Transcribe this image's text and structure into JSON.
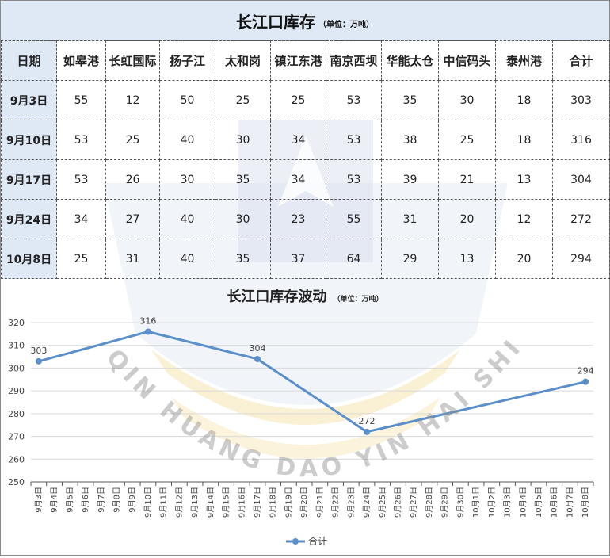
{
  "table": {
    "title": "长江口库存",
    "unit": "（单位：万吨）",
    "headers": [
      "日期",
      "如皋港",
      "长虹国际",
      "扬子江",
      "太和岗",
      "镇江东港",
      "南京西坝",
      "华能太仓",
      "中信码头",
      "泰州港",
      "合计"
    ],
    "rows": [
      [
        "9月3日",
        "55",
        "12",
        "50",
        "25",
        "25",
        "53",
        "35",
        "30",
        "18",
        "303"
      ],
      [
        "9月10日",
        "53",
        "25",
        "40",
        "30",
        "34",
        "53",
        "38",
        "25",
        "18",
        "316"
      ],
      [
        "9月17日",
        "53",
        "26",
        "30",
        "35",
        "34",
        "53",
        "39",
        "21",
        "13",
        "304"
      ],
      [
        "9月24日",
        "34",
        "27",
        "40",
        "30",
        "23",
        "55",
        "31",
        "20",
        "12",
        "272"
      ],
      [
        "10月8日",
        "25",
        "31",
        "40",
        "35",
        "37",
        "64",
        "29",
        "13",
        "20",
        "294"
      ]
    ]
  },
  "watermark_text": "QIN HUANG DAO YIN HAI SHIPPING",
  "chart_data": {
    "type": "line",
    "title": "长江口库存波动",
    "unit": "（单位：万吨）",
    "categories": [
      "9月3日",
      "9月4日",
      "9月5日",
      "9月6日",
      "9月7日",
      "9月8日",
      "9月9日",
      "9月10日",
      "9月11日",
      "9月12日",
      "9月13日",
      "9月14日",
      "9月15日",
      "9月16日",
      "9月17日",
      "9月18日",
      "9月19日",
      "9月20日",
      "9月21日",
      "9月22日",
      "9月23日",
      "9月24日",
      "9月25日",
      "9月26日",
      "9月27日",
      "9月28日",
      "9月29日",
      "9月30日",
      "10月1日",
      "10月2日",
      "10月3日",
      "10月4日",
      "10月5日",
      "10月6日",
      "10月7日",
      "10月8日"
    ],
    "series": [
      {
        "name": "合计",
        "points": [
          [
            "9月3日",
            303
          ],
          [
            "9月10日",
            316
          ],
          [
            "9月17日",
            304
          ],
          [
            "9月24日",
            272
          ],
          [
            "10月8日",
            294
          ]
        ]
      }
    ],
    "yticks": [
      250,
      260,
      270,
      280,
      290,
      300,
      310,
      320
    ],
    "ylim": [
      250,
      320
    ],
    "grid": true,
    "legend_position": "bottom",
    "colors": {
      "line": "#5b8fc9",
      "grid": "#d9d9d9",
      "axis": "#595959",
      "header_bg": "#dfe9f6"
    }
  }
}
